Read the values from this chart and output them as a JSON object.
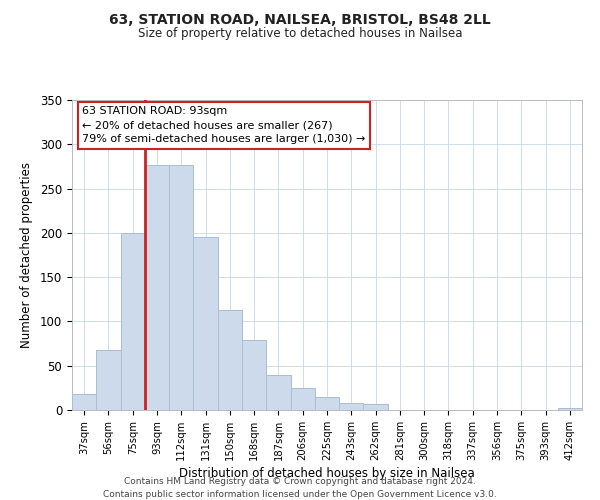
{
  "title": "63, STATION ROAD, NAILSEA, BRISTOL, BS48 2LL",
  "subtitle": "Size of property relative to detached houses in Nailsea",
  "xlabel": "Distribution of detached houses by size in Nailsea",
  "ylabel": "Number of detached properties",
  "bar_labels": [
    "37sqm",
    "56sqm",
    "75sqm",
    "93sqm",
    "112sqm",
    "131sqm",
    "150sqm",
    "168sqm",
    "187sqm",
    "206sqm",
    "225sqm",
    "243sqm",
    "262sqm",
    "281sqm",
    "300sqm",
    "318sqm",
    "337sqm",
    "356sqm",
    "375sqm",
    "393sqm",
    "412sqm"
  ],
  "bar_values": [
    18,
    68,
    200,
    277,
    277,
    195,
    113,
    79,
    40,
    25,
    15,
    8,
    7,
    0,
    0,
    0,
    0,
    0,
    0,
    0,
    2
  ],
  "bar_color": "#ccdaeb",
  "bar_edge_color": "#a8bfd4",
  "highlight_bar_index": 3,
  "highlight_color": "#cc2222",
  "annotation_title": "63 STATION ROAD: 93sqm",
  "annotation_line1": "← 20% of detached houses are smaller (267)",
  "annotation_line2": "79% of semi-detached houses are larger (1,030) →",
  "annotation_box_color": "#ffffff",
  "annotation_box_edge": "#cc2222",
  "ylim": [
    0,
    350
  ],
  "yticks": [
    0,
    50,
    100,
    150,
    200,
    250,
    300,
    350
  ],
  "footer1": "Contains HM Land Registry data © Crown copyright and database right 2024.",
  "footer2": "Contains public sector information licensed under the Open Government Licence v3.0."
}
